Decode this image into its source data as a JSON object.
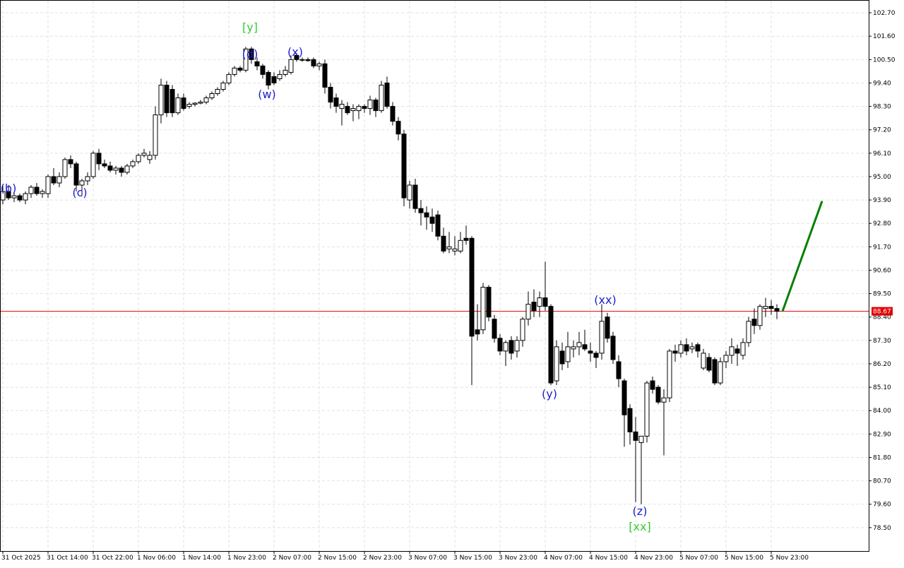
{
  "chart_data": {
    "type": "candlestick",
    "categories": [
      "31 Oct 2025",
      null,
      null,
      null,
      null,
      null,
      null,
      null,
      "31 Oct 14:00",
      null,
      null,
      null,
      null,
      null,
      null,
      null,
      "31 Oct 22:00",
      null,
      null,
      null,
      null,
      null,
      null,
      null,
      "1 Nov 06:00",
      null,
      null,
      null,
      null,
      null,
      null,
      null,
      "1 Nov 14:00",
      null,
      null,
      null,
      null,
      null,
      null,
      null,
      "1 Nov 23:00",
      null,
      null,
      null,
      null,
      null,
      null,
      null,
      "2 Nov 07:00",
      null,
      null,
      null,
      null,
      null,
      null,
      null,
      "2 Nov 15:00",
      null,
      null,
      null,
      null,
      null,
      null,
      null,
      "2 Nov 23:00",
      null,
      null,
      null,
      null,
      null,
      null,
      null,
      "3 Nov 07:00",
      null,
      null,
      null,
      null,
      null,
      null,
      null,
      "3 Nov 15:00",
      null,
      null,
      null,
      null,
      null,
      null,
      null,
      "3 Nov 23:00",
      null,
      null,
      null,
      null,
      null,
      null,
      null,
      "4 Nov 07:00",
      null,
      null,
      null,
      null,
      null,
      null,
      null,
      "4 Nov 15:00",
      null,
      null,
      null,
      null,
      null,
      null,
      null,
      "4 Nov 23:00",
      null,
      null,
      null,
      null,
      null,
      null,
      null,
      "5 Nov 07:00",
      null,
      null,
      null,
      null,
      null,
      null,
      null,
      "5 Nov 15:00",
      null,
      null,
      null,
      null,
      null,
      null,
      null,
      "5 Nov 23:00",
      null
    ],
    "ohlc": [
      [
        93.9,
        94.6,
        93.7,
        94.3
      ],
      [
        94.3,
        94.6,
        93.9,
        94.0
      ],
      [
        94.0,
        94.3,
        93.8,
        94.1
      ],
      [
        94.1,
        94.2,
        93.8,
        93.9
      ],
      [
        93.9,
        94.3,
        93.7,
        94.2
      ],
      [
        94.2,
        94.6,
        94.0,
        94.5
      ],
      [
        94.5,
        94.7,
        94.1,
        94.2
      ],
      [
        94.2,
        94.4,
        94.0,
        94.3
      ],
      [
        94.2,
        95.1,
        94.0,
        95.0
      ],
      [
        95.0,
        95.4,
        94.6,
        94.7
      ],
      [
        94.7,
        95.2,
        94.5,
        95.0
      ],
      [
        95.0,
        95.9,
        94.9,
        95.8
      ],
      [
        95.8,
        96.0,
        95.4,
        95.6
      ],
      [
        95.6,
        95.7,
        94.3,
        94.6
      ],
      [
        94.6,
        94.9,
        94.1,
        94.8
      ],
      [
        94.8,
        95.2,
        94.6,
        95.0
      ],
      [
        95.0,
        96.2,
        94.9,
        96.1
      ],
      [
        96.1,
        96.3,
        95.3,
        95.6
      ],
      [
        95.6,
        95.8,
        95.4,
        95.5
      ],
      [
        95.5,
        95.7,
        95.2,
        95.3
      ],
      [
        95.3,
        95.5,
        95.1,
        95.4
      ],
      [
        95.4,
        95.5,
        95.0,
        95.2
      ],
      [
        95.2,
        95.6,
        95.1,
        95.5
      ],
      [
        95.5,
        95.8,
        95.4,
        95.7
      ],
      [
        95.7,
        96.1,
        95.6,
        96.0
      ],
      [
        96.0,
        96.3,
        95.9,
        96.1
      ],
      [
        95.8,
        96.2,
        95.6,
        96.0
      ],
      [
        96.0,
        98.3,
        95.8,
        97.9
      ],
      [
        97.9,
        99.6,
        97.5,
        99.3
      ],
      [
        99.3,
        99.5,
        97.8,
        98.0
      ],
      [
        99.1,
        99.3,
        97.8,
        98.0
      ],
      [
        98.0,
        98.9,
        97.9,
        98.7
      ],
      [
        98.7,
        98.9,
        98.1,
        98.2
      ],
      [
        98.3,
        98.5,
        98.2,
        98.4
      ],
      [
        98.4,
        98.5,
        98.3,
        98.45
      ],
      [
        98.45,
        98.6,
        98.4,
        98.5
      ],
      [
        98.5,
        98.8,
        98.4,
        98.7
      ],
      [
        98.7,
        99.0,
        98.6,
        98.9
      ],
      [
        98.9,
        99.2,
        98.8,
        99.1
      ],
      [
        99.1,
        99.5,
        99.0,
        99.4
      ],
      [
        99.4,
        99.9,
        99.3,
        99.8
      ],
      [
        99.8,
        100.2,
        99.7,
        100.1
      ],
      [
        100.1,
        100.2,
        99.9,
        100.0
      ],
      [
        100.0,
        101.1,
        99.9,
        101.0
      ],
      [
        101.0,
        101.1,
        100.3,
        100.5
      ],
      [
        100.4,
        100.6,
        100.0,
        100.2
      ],
      [
        100.2,
        100.3,
        99.6,
        99.8
      ],
      [
        99.9,
        100.0,
        99.1,
        99.3
      ],
      [
        99.7,
        99.9,
        99.3,
        99.4
      ],
      [
        99.6,
        100.0,
        99.5,
        99.8
      ],
      [
        99.8,
        100.2,
        99.7,
        100.0
      ],
      [
        99.9,
        100.7,
        99.8,
        100.5
      ],
      [
        100.7,
        100.8,
        100.4,
        100.5
      ],
      [
        100.5,
        100.6,
        100.4,
        100.5
      ],
      [
        100.5,
        100.6,
        100.4,
        100.45
      ],
      [
        100.5,
        100.6,
        100.1,
        100.2
      ],
      [
        100.2,
        100.4,
        100.0,
        100.3
      ],
      [
        100.3,
        100.5,
        98.9,
        99.2
      ],
      [
        99.2,
        99.4,
        98.2,
        98.5
      ],
      [
        98.7,
        98.9,
        98.0,
        98.3
      ],
      [
        98.2,
        98.6,
        97.4,
        98.4
      ],
      [
        98.3,
        98.5,
        97.9,
        98.0
      ],
      [
        98.1,
        98.4,
        97.6,
        98.2
      ],
      [
        98.1,
        98.4,
        97.7,
        98.3
      ],
      [
        98.3,
        98.4,
        98.0,
        98.2
      ],
      [
        98.2,
        98.8,
        97.9,
        98.6
      ],
      [
        98.6,
        98.7,
        97.8,
        98.1
      ],
      [
        98.1,
        99.5,
        98.0,
        99.3
      ],
      [
        99.4,
        99.7,
        98.2,
        98.3
      ],
      [
        98.3,
        98.5,
        97.4,
        97.6
      ],
      [
        97.6,
        97.8,
        96.7,
        97.0
      ],
      [
        97.0,
        97.2,
        93.6,
        94.0
      ],
      [
        93.9,
        94.8,
        93.5,
        94.6
      ],
      [
        94.6,
        94.9,
        93.3,
        93.5
      ],
      [
        93.5,
        93.9,
        92.7,
        93.3
      ],
      [
        93.3,
        93.6,
        92.5,
        93.1
      ],
      [
        93.1,
        93.5,
        92.4,
        92.8
      ],
      [
        93.2,
        93.4,
        92.0,
        92.2
      ],
      [
        92.2,
        92.6,
        91.4,
        91.5
      ],
      [
        91.6,
        92.4,
        91.4,
        91.7
      ],
      [
        91.5,
        92.2,
        91.3,
        91.6
      ],
      [
        91.5,
        92.4,
        91.4,
        92.0
      ],
      [
        92.1,
        92.7,
        91.8,
        92.0
      ],
      [
        92.1,
        92.2,
        85.2,
        87.5
      ],
      [
        87.8,
        89.0,
        87.3,
        87.6
      ],
      [
        87.8,
        90.0,
        87.6,
        89.8
      ],
      [
        89.8,
        89.9,
        88.2,
        88.4
      ],
      [
        88.3,
        88.5,
        87.2,
        87.4
      ],
      [
        87.4,
        87.6,
        86.6,
        86.8
      ],
      [
        86.8,
        87.3,
        86.1,
        87.2
      ],
      [
        87.3,
        87.5,
        86.4,
        86.7
      ],
      [
        86.8,
        87.5,
        86.5,
        87.3
      ],
      [
        87.3,
        88.4,
        87.0,
        88.3
      ],
      [
        88.3,
        89.6,
        88.0,
        89.0
      ],
      [
        89.1,
        89.7,
        88.4,
        88.7
      ],
      [
        88.9,
        89.6,
        88.4,
        89.3
      ],
      [
        89.3,
        91.0,
        88.7,
        88.9
      ],
      [
        88.9,
        89.0,
        85.2,
        85.3
      ],
      [
        85.4,
        87.3,
        85.2,
        87.0
      ],
      [
        86.8,
        87.2,
        85.9,
        86.2
      ],
      [
        86.3,
        87.7,
        86.0,
        87.0
      ],
      [
        86.9,
        87.3,
        86.5,
        87.0
      ],
      [
        87.0,
        87.7,
        86.6,
        87.2
      ],
      [
        87.1,
        87.8,
        86.8,
        86.9
      ],
      [
        86.8,
        87.2,
        86.3,
        86.7
      ],
      [
        86.7,
        86.8,
        86.0,
        86.5
      ],
      [
        86.7,
        89.0,
        86.4,
        88.2
      ],
      [
        88.4,
        88.6,
        87.2,
        87.4
      ],
      [
        87.5,
        87.7,
        86.2,
        86.4
      ],
      [
        86.3,
        86.6,
        85.1,
        85.5
      ],
      [
        85.4,
        85.5,
        82.3,
        83.8
      ],
      [
        84.1,
        84.3,
        82.4,
        83.0
      ],
      [
        83.0,
        83.7,
        79.7,
        82.6
      ],
      [
        82.5,
        82.8,
        79.6,
        82.8
      ],
      [
        82.8,
        85.4,
        82.5,
        85.3
      ],
      [
        85.4,
        85.6,
        84.8,
        85.0
      ],
      [
        85.1,
        85.2,
        84.3,
        84.4
      ],
      [
        84.4,
        85.0,
        81.9,
        84.6
      ],
      [
        84.6,
        86.9,
        84.4,
        86.8
      ],
      [
        86.8,
        87.1,
        86.3,
        86.7
      ],
      [
        86.7,
        87.3,
        86.5,
        87.1
      ],
      [
        87.1,
        87.4,
        86.6,
        86.8
      ],
      [
        86.9,
        87.2,
        86.7,
        87.0
      ],
      [
        87.1,
        87.2,
        86.5,
        86.8
      ],
      [
        86.0,
        86.9,
        85.9,
        86.7
      ],
      [
        86.5,
        86.7,
        85.8,
        85.9
      ],
      [
        86.4,
        86.5,
        85.2,
        85.3
      ],
      [
        85.3,
        86.5,
        85.2,
        86.3
      ],
      [
        86.3,
        86.8,
        86.0,
        86.6
      ],
      [
        86.6,
        87.4,
        86.2,
        87.0
      ],
      [
        86.9,
        87.1,
        86.1,
        86.7
      ],
      [
        86.6,
        87.4,
        86.4,
        87.2
      ],
      [
        87.2,
        88.4,
        87.0,
        88.2
      ],
      [
        88.3,
        88.8,
        87.6,
        88.0
      ],
      [
        88.0,
        89.0,
        87.8,
        88.9
      ],
      [
        88.8,
        89.3,
        88.4,
        88.9
      ],
      [
        88.9,
        89.2,
        88.5,
        88.8
      ],
      [
        88.8,
        89.0,
        88.3,
        88.67
      ]
    ],
    "ylim": [
      77.4,
      103.3
    ],
    "yticks": [
      {
        "value": 102.7,
        "label": "102.70"
      },
      {
        "value": 101.6,
        "label": "101.60"
      },
      {
        "value": 100.5,
        "label": "100.50"
      },
      {
        "value": 99.4,
        "label": "99.40"
      },
      {
        "value": 98.3,
        "label": "98.30"
      },
      {
        "value": 97.2,
        "label": "97.20"
      },
      {
        "value": 96.1,
        "label": "96.10"
      },
      {
        "value": 95,
        "label": "95.00"
      },
      {
        "value": 93.9,
        "label": "93.90"
      },
      {
        "value": 92.8,
        "label": "92.80"
      },
      {
        "value": 91.7,
        "label": "91.70"
      },
      {
        "value": 90.6,
        "label": "90.60"
      },
      {
        "value": 89.5,
        "label": "89.50"
      },
      {
        "value": 88.4,
        "label": "88.40"
      },
      {
        "value": 87.3,
        "label": "87.30"
      },
      {
        "value": 86.2,
        "label": "86.20"
      },
      {
        "value": 85.1,
        "label": "85.10"
      },
      {
        "value": 84,
        "label": "84.00"
      },
      {
        "value": 82.9,
        "label": "82.90"
      },
      {
        "value": 81.8,
        "label": "81.80"
      },
      {
        "value": 80.7,
        "label": "80.70"
      },
      {
        "value": 79.6,
        "label": "79.60"
      },
      {
        "value": 78.5,
        "label": "78.50"
      }
    ],
    "grid": true,
    "up_color": "#ffffff",
    "down_color": "#000000",
    "current_price": {
      "value": 88.67,
      "color": "#e00000"
    },
    "forecast": {
      "values": [
        88.67,
        93.85
      ],
      "color": "#008000"
    },
    "annotations": [
      {
        "text": "(b)",
        "color": "#1c1cd0"
      },
      {
        "text": "(c)",
        "color": "#1c1cd0"
      },
      {
        "text": "[y]",
        "color": "#33cc33"
      },
      {
        "text": "(d)",
        "color": "#1c1cd0"
      },
      {
        "text": "(x)",
        "color": "#1c1cd0"
      },
      {
        "text": "(w)",
        "color": "#1c1cd0"
      },
      {
        "text": "(y)",
        "color": "#1c1cd0"
      },
      {
        "text": "(xx)",
        "color": "#1c1cd0"
      },
      {
        "text": "(z)",
        "color": "#1c1cd0"
      },
      {
        "text": "[xx]",
        "color": "#33cc33"
      }
    ]
  }
}
